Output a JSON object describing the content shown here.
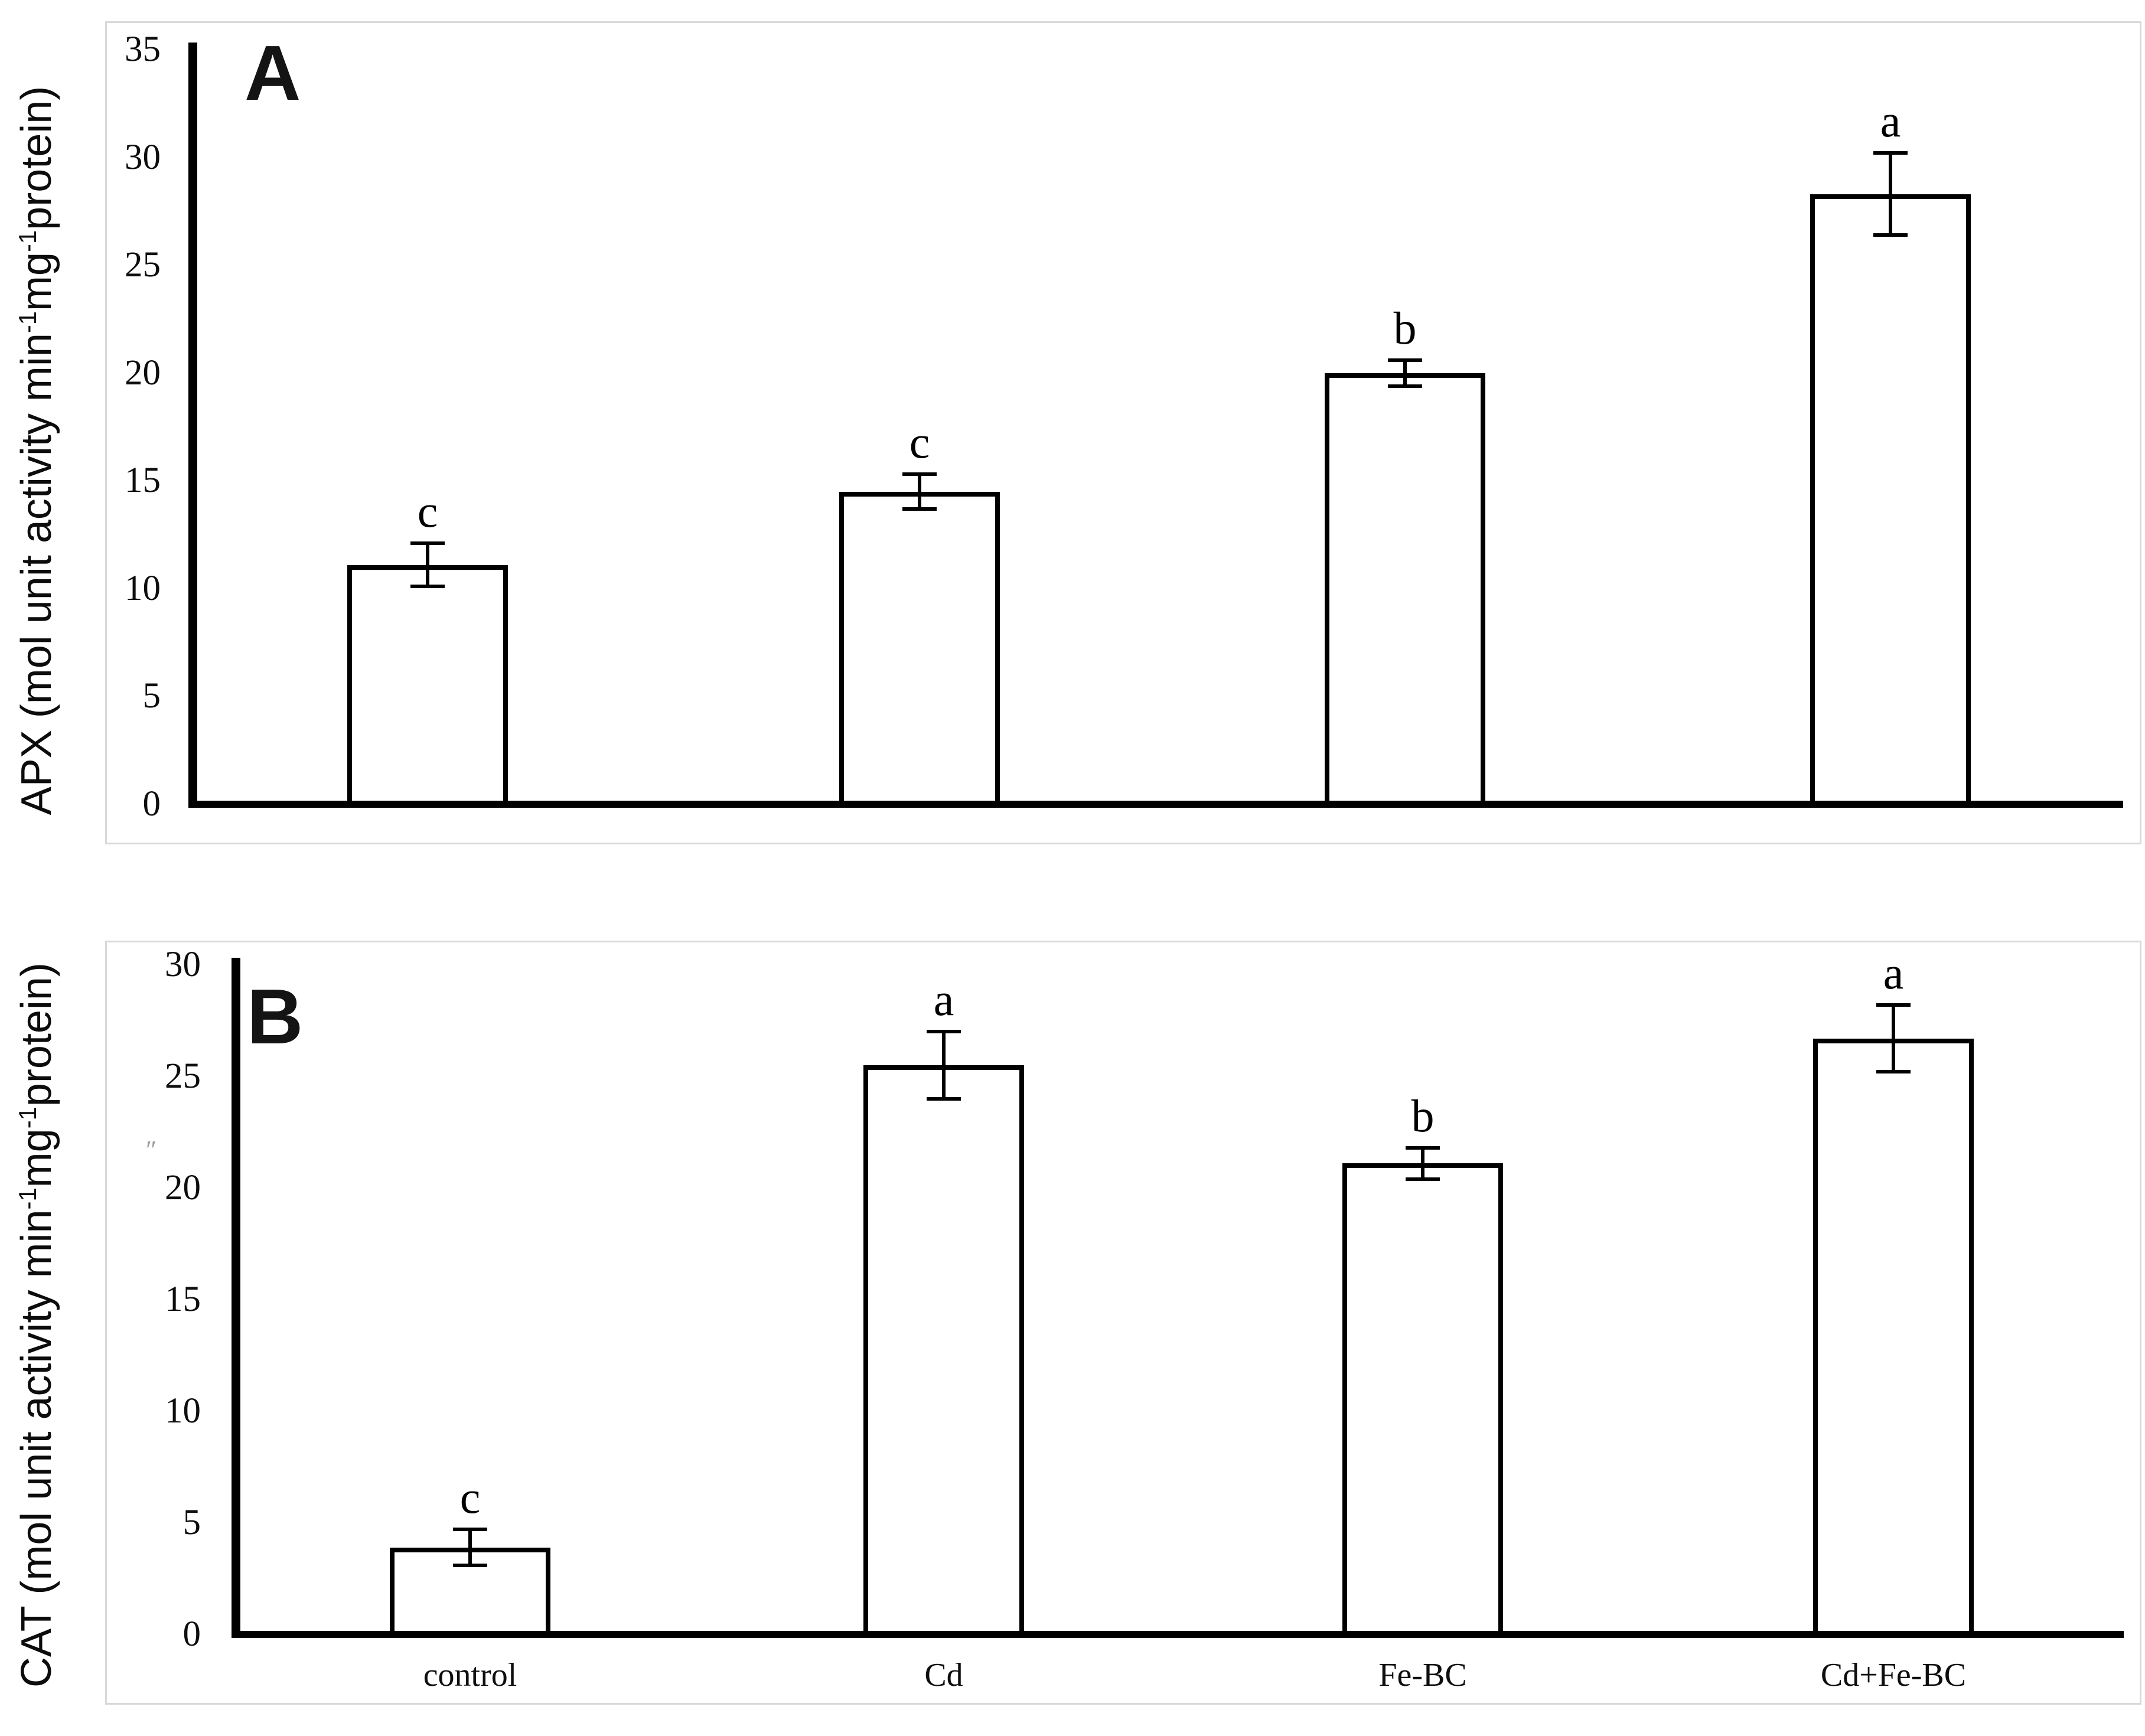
{
  "figure": {
    "background": "#ffffff",
    "frame_color": "#d9d9d9",
    "ink_color": "#000000",
    "bar_fill": "#ffffff",
    "stray_mark": "″",
    "panel_labels": [
      "A",
      "B"
    ]
  },
  "chart_data": [
    {
      "type": "bar",
      "panel_label": "A",
      "title": "",
      "ylabel": "APX (mol unit activity min-1mg-1protein)",
      "ylabel_parts": {
        "prefix": "APX (mol unit activity min",
        "sup1": "-1",
        "mid": "mg",
        "sup2": "-1",
        "suffix": "protein)"
      },
      "xlabel": "",
      "categories": [
        "control",
        "Cd",
        "Fe-BC",
        "Cd+Fe-BC"
      ],
      "values": [
        11.1,
        14.5,
        20.0,
        28.3
      ],
      "errors": [
        1.0,
        0.8,
        0.6,
        1.9
      ],
      "sig_letters": [
        "c",
        "c",
        "b",
        "a"
      ],
      "ylim": [
        0,
        35
      ],
      "ytick_step": 5,
      "yticks": [
        0,
        5,
        10,
        15,
        20,
        25,
        30,
        35
      ],
      "grid": false,
      "legend": false,
      "bar_fill": "#ffffff",
      "bar_border": "#000000",
      "show_x_tick_labels": false
    },
    {
      "type": "bar",
      "panel_label": "B",
      "title": "",
      "ylabel": "CAT (mol unit activity min-1mg-1protein)",
      "ylabel_parts": {
        "prefix": "CAT (mol unit activity min",
        "sup1": "-1",
        "mid": "mg",
        "sup2": "-1",
        "suffix": "protein)"
      },
      "xlabel": "",
      "categories": [
        "control",
        "Cd",
        "Fe-BC",
        "Cd+Fe-BC"
      ],
      "values": [
        3.9,
        25.5,
        21.1,
        26.7
      ],
      "errors": [
        0.8,
        1.5,
        0.7,
        1.5
      ],
      "sig_letters": [
        "c",
        "a",
        "b",
        "a"
      ],
      "ylim": [
        0,
        30
      ],
      "ytick_step": 5,
      "yticks": [
        0,
        5,
        10,
        15,
        20,
        25,
        30
      ],
      "grid": false,
      "legend": false,
      "bar_fill": "#ffffff",
      "bar_border": "#000000",
      "show_x_tick_labels": true
    }
  ]
}
